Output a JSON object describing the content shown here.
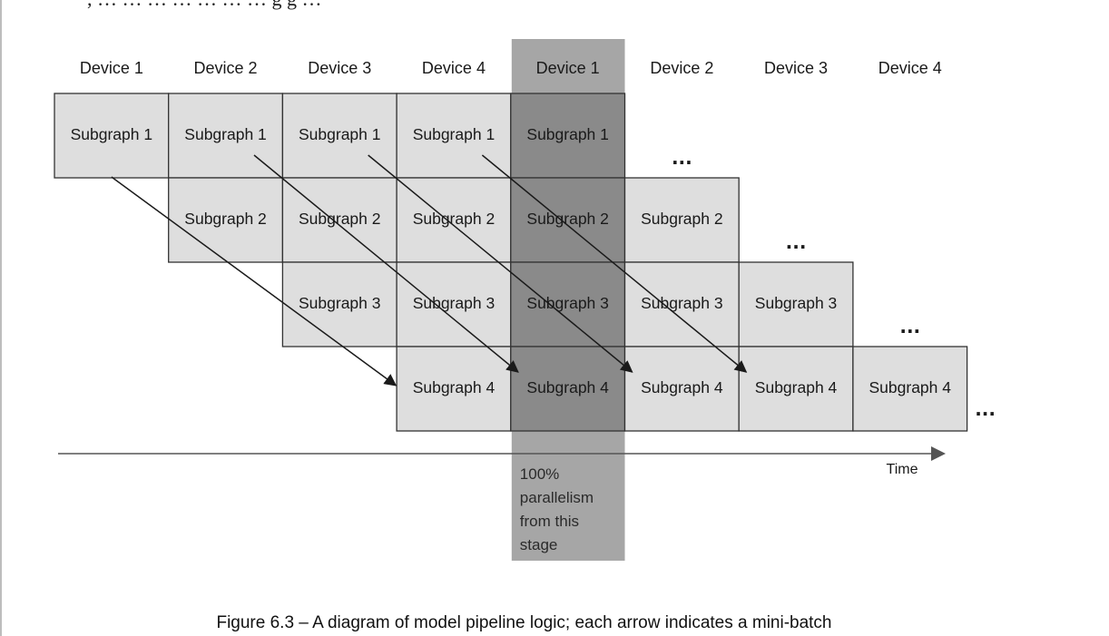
{
  "top_text": ", … … … … … … … g g …",
  "columns": [
    {
      "device": "Device 1",
      "highlight": false
    },
    {
      "device": "Device 2",
      "highlight": false
    },
    {
      "device": "Device 3",
      "highlight": false
    },
    {
      "device": "Device 4",
      "highlight": false
    },
    {
      "device": "Device 1",
      "highlight": true
    },
    {
      "device": "Device 2",
      "highlight": false
    },
    {
      "device": "Device 3",
      "highlight": false
    },
    {
      "device": "Device 4",
      "highlight": false
    }
  ],
  "rows": [
    {
      "label": "Subgraph 1",
      "start_col": 0,
      "end_col": 4
    },
    {
      "label": "Subgraph 2",
      "start_col": 1,
      "end_col": 5
    },
    {
      "label": "Subgraph 3",
      "start_col": 2,
      "end_col": 6
    },
    {
      "label": "Subgraph 4",
      "start_col": 3,
      "end_col": 7
    }
  ],
  "ellipsis": "...",
  "ellipsis_positions": [
    {
      "row": 0,
      "col": 5
    },
    {
      "row": 1,
      "col": 6
    },
    {
      "row": 2,
      "col": 7
    },
    {
      "row": 3,
      "col": 8
    }
  ],
  "arrows": [
    {
      "from": {
        "row": 0,
        "col": 0
      },
      "to": {
        "row": 3,
        "col": 3
      }
    },
    {
      "from": {
        "row": 0,
        "col": 1
      },
      "to": {
        "row": 3,
        "col": 4
      }
    },
    {
      "from": {
        "row": 0,
        "col": 2
      },
      "to": {
        "row": 3,
        "col": 5
      }
    },
    {
      "from": {
        "row": 0,
        "col": 3
      },
      "to": {
        "row": 3,
        "col": 6
      }
    }
  ],
  "time_axis_label": "Time",
  "highlight_note": [
    "100%",
    "parallelism",
    "from this",
    "stage"
  ],
  "caption": "Figure 6.3 – A diagram of model pipeline logic; each arrow indicates a mini-batch",
  "colors": {
    "cell_fill": "#dedede",
    "highlight_band": "#a6a6a6",
    "highlight_cell": "#8a8a8a",
    "stroke": "#333333"
  }
}
